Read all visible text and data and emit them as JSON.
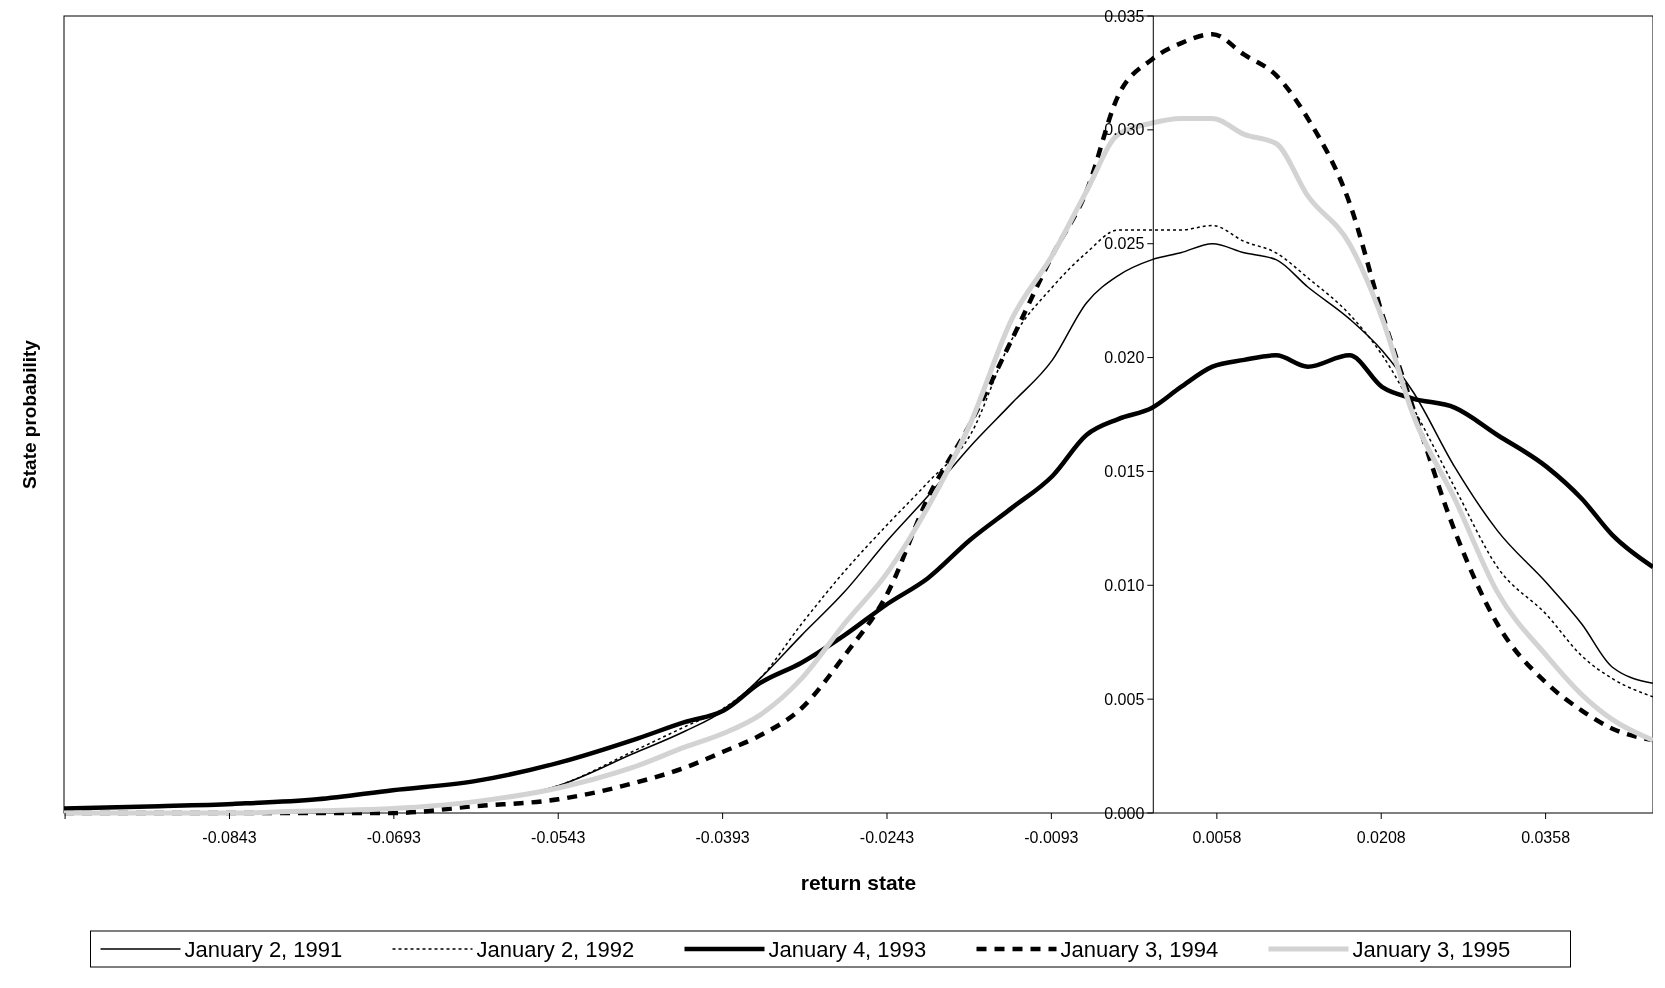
{
  "chart_data": {
    "type": "line",
    "xlabel": "return state",
    "ylabel": "State probability",
    "legend": "bottom",
    "x": [
      -0.0994,
      -0.0907,
      -0.084,
      -0.0763,
      -0.0694,
      -0.0619,
      -0.0543,
      -0.0475,
      -0.0427,
      -0.0392,
      -0.0359,
      -0.0321,
      -0.0282,
      -0.0242,
      -0.0206,
      -0.0167,
      -0.0129,
      -0.0092,
      -0.0061,
      -0.0032,
      -0.0001,
      0.0025,
      0.0054,
      0.0083,
      0.0112,
      0.0141,
      0.0179,
      0.0209,
      0.0237,
      0.0275,
      0.0314,
      0.0359,
      0.0391,
      0.0419,
      0.0456
    ],
    "xlim": [
      -0.0994,
      0.0456
    ],
    "xticks": [
      {
        "value": -0.0993,
        "label": null
      },
      -0.0843,
      -0.0693,
      -0.0543,
      -0.0393,
      -0.0243,
      -0.0093,
      0.0058,
      0.0208,
      0.0358
    ],
    "ylim": [
      0,
      0.035
    ],
    "yticks": [
      {
        "value": 0,
        "label": "0.000"
      },
      {
        "value": 0.005,
        "label": "0.005"
      },
      {
        "value": 0.01,
        "label": "0.010"
      },
      {
        "value": 0.015,
        "label": "0.015"
      },
      {
        "value": 0.02,
        "label": "0.020"
      },
      {
        "value": 0.025,
        "label": "0.025"
      },
      {
        "value": 0.03,
        "label": "0.030"
      },
      {
        "value": 0.035,
        "label": "0.035"
      }
    ],
    "series": [
      {
        "name": "January 2, 1991",
        "color": "#000000",
        "line_style": "solid",
        "values": [
          0,
          0,
          0,
          0.0001,
          0.0002,
          0.0005,
          0.0012,
          0.0026,
          0.0036,
          0.0045,
          0.0059,
          0.0078,
          0.0097,
          0.012,
          0.0139,
          0.0161,
          0.018,
          0.0199,
          0.0224,
          0.0236,
          0.0243,
          0.0246,
          0.025,
          0.0246,
          0.0243,
          0.0231,
          0.0217,
          0.0203,
          0.0185,
          0.0152,
          0.0124,
          0.0101,
          0.0083,
          0.0064,
          0.0057
        ]
      },
      {
        "name": "January 2, 1992",
        "color": "#000000",
        "line_style": "dotted",
        "values": [
          0,
          0,
          0,
          0.0001,
          0.0002,
          0.0005,
          0.0012,
          0.0027,
          0.0038,
          0.0046,
          0.0059,
          0.0083,
          0.0106,
          0.0127,
          0.0145,
          0.0166,
          0.0208,
          0.0231,
          0.0246,
          0.0256,
          0.0256,
          0.0256,
          0.0258,
          0.0251,
          0.0246,
          0.0235,
          0.0219,
          0.0201,
          0.0178,
          0.0143,
          0.0108,
          0.0087,
          0.0069,
          0.0059,
          0.0051
        ]
      },
      {
        "name": "January 4, 1993",
        "color": "#000000",
        "line_style": "solid",
        "values": [
          0.0002,
          0.0003,
          0.0004,
          0.0006,
          0.001,
          0.0014,
          0.0022,
          0.0032,
          0.004,
          0.0045,
          0.0057,
          0.0066,
          0.0078,
          0.0092,
          0.0103,
          0.012,
          0.0134,
          0.0148,
          0.0166,
          0.0173,
          0.0178,
          0.0187,
          0.0196,
          0.0199,
          0.0201,
          0.0196,
          0.0201,
          0.0187,
          0.0182,
          0.0178,
          0.0166,
          0.0152,
          0.0138,
          0.0122,
          0.0108
        ]
      },
      {
        "name": "January 3, 1994",
        "color": "#000000",
        "line_style": "dashed",
        "values": [
          0,
          0,
          0,
          0,
          0,
          0.0003,
          0.0006,
          0.0013,
          0.002,
          0.0027,
          0.0034,
          0.0046,
          0.0069,
          0.0097,
          0.0138,
          0.0171,
          0.0208,
          0.0245,
          0.0273,
          0.0315,
          0.0331,
          0.0338,
          0.0342,
          0.0333,
          0.0324,
          0.0305,
          0.0268,
          0.0219,
          0.0178,
          0.0124,
          0.0083,
          0.0057,
          0.0045,
          0.0037,
          0.0032
        ]
      },
      {
        "name": "January 3, 1995",
        "color": "#d3d3d3",
        "line_style": "solid",
        "values": [
          0,
          0,
          0,
          0.0001,
          0.0002,
          0.0005,
          0.0011,
          0.002,
          0.0029,
          0.0035,
          0.0043,
          0.0059,
          0.0083,
          0.0106,
          0.0134,
          0.0171,
          0.0217,
          0.0245,
          0.0273,
          0.0298,
          0.0303,
          0.0305,
          0.0305,
          0.0298,
          0.0294,
          0.0271,
          0.025,
          0.0217,
          0.0175,
          0.0138,
          0.0097,
          0.0069,
          0.0052,
          0.0041,
          0.0032
        ]
      }
    ]
  }
}
